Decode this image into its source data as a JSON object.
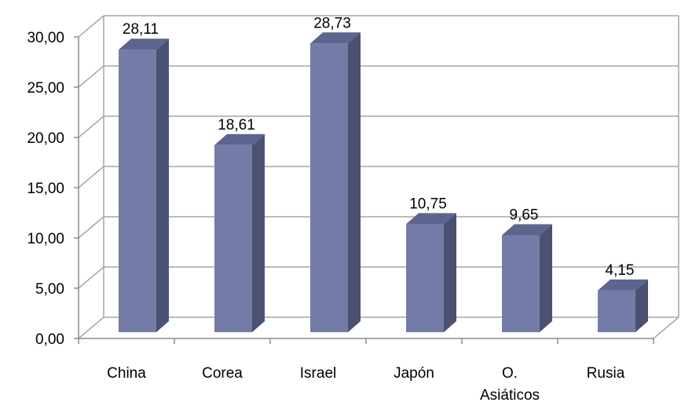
{
  "chart_data": {
    "type": "bar",
    "style": "3d-column",
    "categories": [
      "China",
      "Corea",
      "Israel",
      "Japón",
      "O. Asiáticos",
      "Rusia"
    ],
    "category_lines": [
      [
        "China"
      ],
      [
        "Corea"
      ],
      [
        "Israel"
      ],
      [
        "Japón"
      ],
      [
        "O.",
        "Asiáticos"
      ],
      [
        "Rusia"
      ]
    ],
    "values": [
      28.11,
      18.61,
      28.73,
      10.75,
      9.65,
      4.15
    ],
    "value_labels": [
      "28,11",
      "18,61",
      "28,73",
      "10,75",
      "9,65",
      "4,15"
    ],
    "title": "",
    "xlabel": "",
    "ylabel": "",
    "ylim": [
      0,
      30
    ],
    "yticks": [
      "0,00",
      "5,00",
      "10,00",
      "15,00",
      "20,00",
      "25,00",
      "30,00"
    ],
    "grid": true,
    "legend": "none",
    "colors": {
      "bar_front": "#737CA6",
      "bar_side": "#4B5173",
      "bar_top": "#5C6590",
      "grid": "#A6A6A6",
      "axis": "#8C8C8C"
    }
  }
}
